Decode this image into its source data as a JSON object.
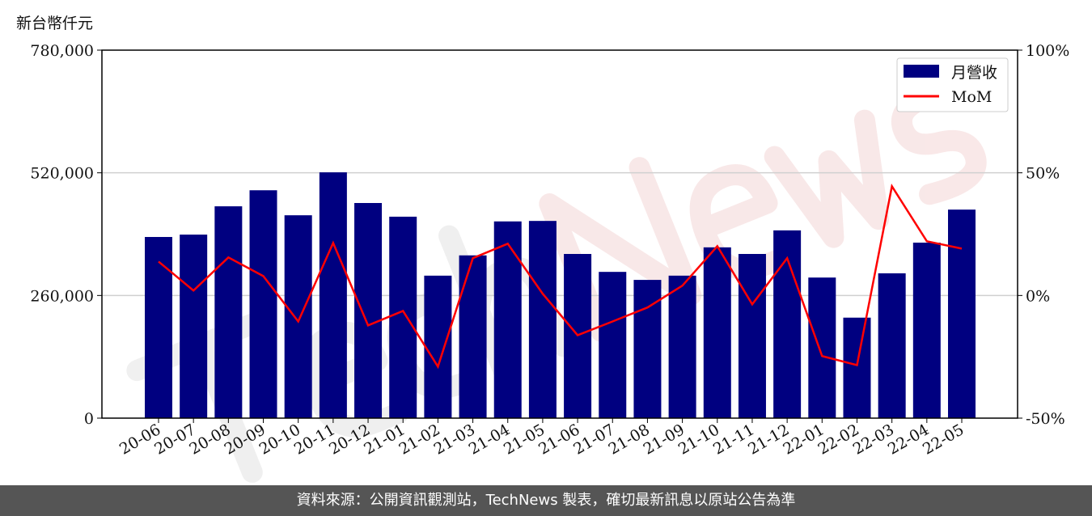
{
  "chart_data": {
    "type": "bar+line",
    "unit_label": "新台幣仟元",
    "categories": [
      "20-06",
      "20-07",
      "20-08",
      "20-09",
      "20-10",
      "20-11",
      "20-12",
      "21-01",
      "21-02",
      "21-03",
      "21-04",
      "21-05",
      "21-06",
      "21-07",
      "21-08",
      "21-09",
      "21-10",
      "21-11",
      "21-12",
      "22-01",
      "22-02",
      "22-03",
      "22-04",
      "22-05"
    ],
    "series": [
      {
        "name": "月營收",
        "axis": "left",
        "type": "bar",
        "color": "#000080",
        "values": [
          384000,
          389000,
          449000,
          483000,
          430000,
          521000,
          456000,
          427000,
          302000,
          345000,
          417000,
          418000,
          348000,
          310000,
          293000,
          302000,
          362000,
          348000,
          398000,
          298000,
          213000,
          307000,
          372000,
          442000
        ]
      },
      {
        "name": "MoM",
        "axis": "right",
        "type": "line",
        "color": "#ff0000",
        "values": [
          13.8,
          2.0,
          15.5,
          7.9,
          -10.6,
          21.4,
          -12.2,
          -6.3,
          -29.0,
          15.2,
          21.1,
          0.7,
          -16.2,
          -10.6,
          -4.9,
          4.0,
          20.1,
          -3.6,
          15.2,
          -24.7,
          -28.4,
          44.5,
          22.1,
          19.1
        ]
      }
    ],
    "left_axis": {
      "ylim": [
        0,
        780000
      ],
      "ticks": [
        "0",
        "260,000",
        "520,000",
        "780,000"
      ],
      "tick_values": [
        0,
        260000,
        520000,
        780000
      ]
    },
    "right_axis": {
      "ylim": [
        -50,
        100
      ],
      "ticks": [
        "-50%",
        "0%",
        "50%",
        "100%"
      ],
      "tick_values": [
        -50,
        0,
        50,
        100
      ]
    },
    "grid": "horizontal",
    "legend": "top-right",
    "watermark": "TechNews"
  },
  "footer": "資料來源：公開資訊觀測站，TechNews 製表，確切最新訊息以原站公告為準"
}
